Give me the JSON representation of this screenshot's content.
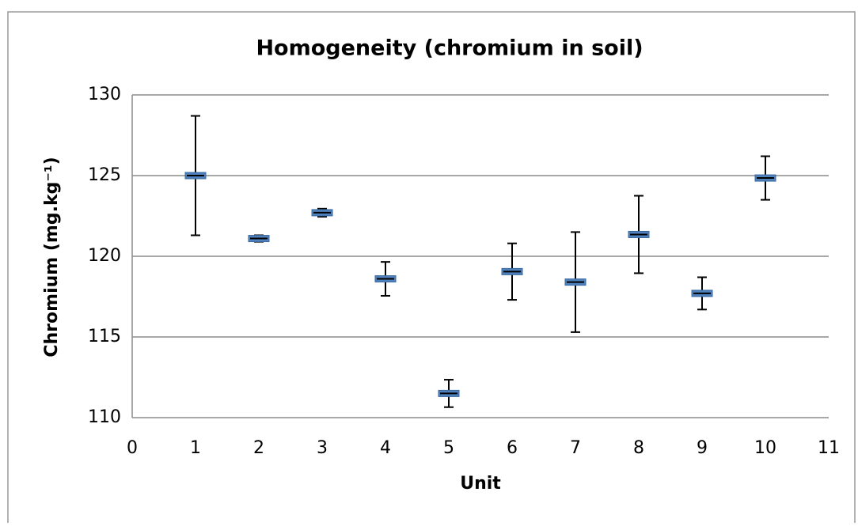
{
  "chart_data": {
    "type": "errorbar",
    "title": "Homogeneity (chromium in soil)",
    "x_label": "Unit",
    "y_label": "Chromium (mg.kg⁻¹)",
    "x": [
      1,
      2,
      3,
      4,
      5,
      6,
      7,
      8,
      9,
      10
    ],
    "series": [
      {
        "color": "#4f81bd",
        "values": [
          125.0,
          121.1,
          122.7,
          118.6,
          111.5,
          119.05,
          118.4,
          121.35,
          117.7,
          124.85
        ],
        "errors": [
          3.7,
          0.2,
          0.25,
          1.05,
          0.85,
          1.75,
          3.1,
          2.4,
          1.0,
          1.35
        ]
      }
    ],
    "xlim": [
      0,
      11
    ],
    "xticks": [
      0,
      1,
      2,
      3,
      4,
      5,
      6,
      7,
      8,
      9,
      10,
      11
    ],
    "ylim": [
      110,
      130
    ],
    "yticks": [
      110,
      115,
      120,
      125,
      130
    ],
    "grid": true
  }
}
